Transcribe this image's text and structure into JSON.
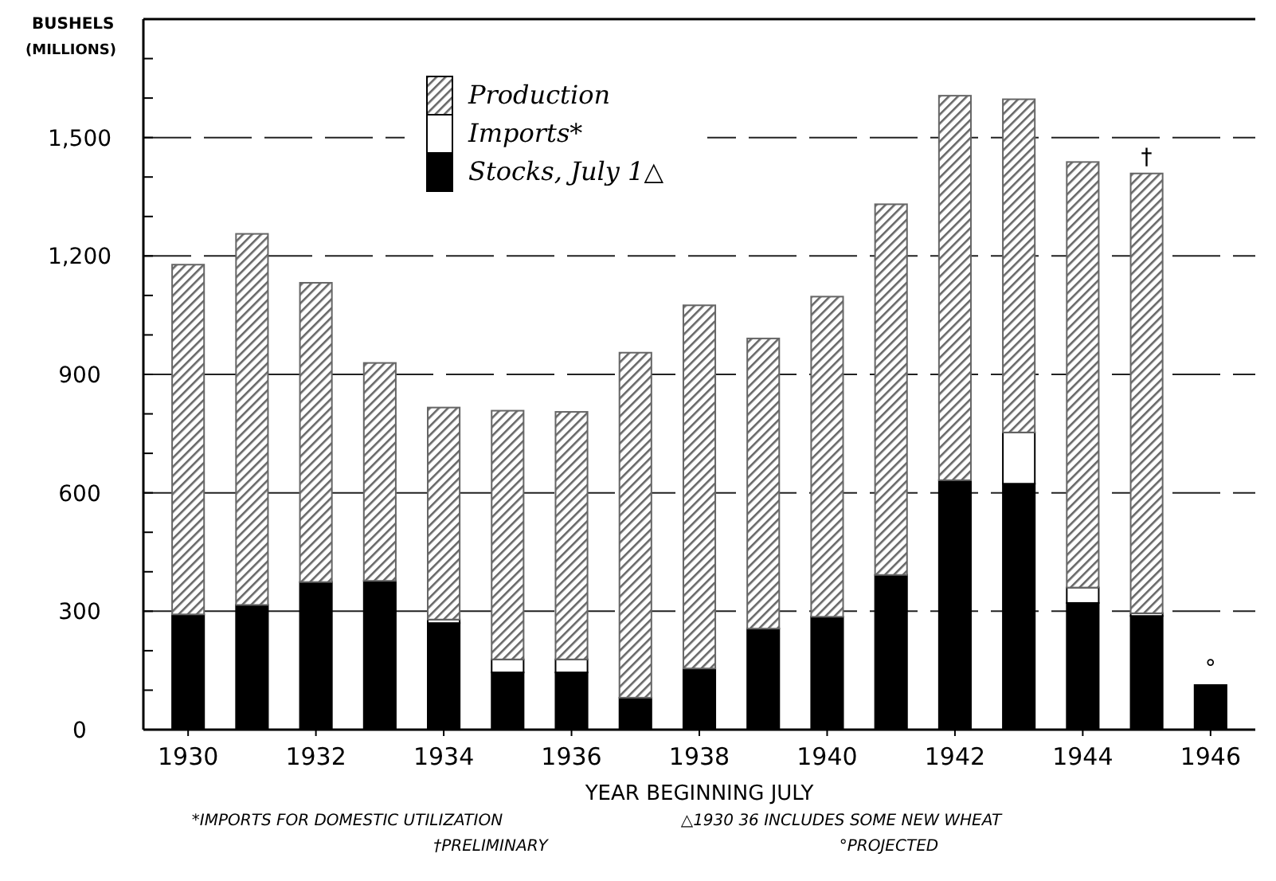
{
  "chart_data": {
    "type": "bar",
    "stacked": true,
    "ylabel": "BUSHELS (MILLIONS)",
    "xlabel": "YEAR BEGINNING JULY",
    "x": [
      1930,
      1931,
      1932,
      1933,
      1934,
      1935,
      1936,
      1937,
      1938,
      1939,
      1940,
      1941,
      1942,
      1943,
      1944,
      1945,
      1946
    ],
    "xlim": [
      1929.3,
      1946.7
    ],
    "xticks": [
      1930,
      1932,
      1934,
      1936,
      1938,
      1940,
      1942,
      1944,
      1946
    ],
    "ylim": [
      0,
      1800
    ],
    "yticks": [
      0,
      {
        "value": 100,
        "label": null
      },
      {
        "value": 200,
        "label": null
      },
      {
        "value": 300,
        "label": "300"
      },
      {
        "value": 400,
        "label": null
      },
      {
        "value": 500,
        "label": null
      },
      {
        "value": 600,
        "label": "600"
      },
      {
        "value": 700,
        "label": null
      },
      {
        "value": 800,
        "label": null
      },
      {
        "value": 900,
        "label": "900"
      },
      {
        "value": 1000,
        "label": null
      },
      {
        "value": 1100,
        "label": null
      },
      {
        "value": 1200,
        "label": "1,200"
      },
      {
        "value": 1300,
        "label": null
      },
      {
        "value": 1400,
        "label": null
      },
      {
        "value": 1500,
        "label": "1,500"
      },
      {
        "value": 1600,
        "label": null
      },
      {
        "value": 1700,
        "label": null
      }
    ],
    "grid": "y",
    "legend": "top",
    "series": [
      {
        "name": "Stocks, July 1△",
        "color": "#000000",
        "values": [
          292,
          316,
          374,
          377,
          270,
          145,
          145,
          81,
          155,
          256,
          286,
          392,
          632,
          623,
          321,
          288,
          113
        ]
      },
      {
        "name": "Imports*",
        "color": "#ffffff",
        "values": [
          null,
          null,
          null,
          null,
          9,
          33,
          33,
          null,
          null,
          null,
          null,
          null,
          null,
          130,
          39,
          7,
          null
        ]
      },
      {
        "name": "Production",
        "color": "#666666",
        "values": [
          886,
          940,
          758,
          552,
          537,
          630,
          627,
          874,
          920,
          735,
          811,
          939,
          974,
          844,
          1078,
          1114,
          null
        ]
      }
    ],
    "annotations": [
      {
        "text": "†",
        "x": 1945,
        "y": 1409
      },
      {
        "text": "°",
        "x": 1946,
        "y": 113
      },
      "*IMPORTS FOR DOMESTIC UTILIZATION",
      "△1930 36 INCLUDES SOME NEW WHEAT",
      "†PRELIMINARY",
      "°PROJECTED"
    ]
  }
}
